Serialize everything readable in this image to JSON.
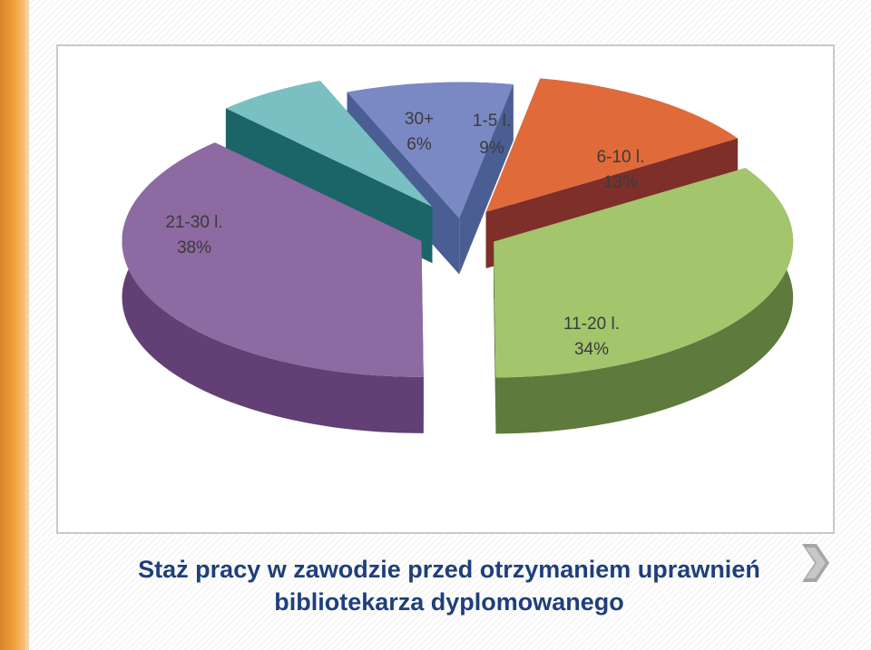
{
  "chart_data": {
    "type": "pie",
    "slices": [
      {
        "name": "1-5 l.",
        "percent_label": "9%",
        "value": 9,
        "color": "#7a89c3",
        "color_dark": "#4b5e93"
      },
      {
        "name": "6-10 l.",
        "percent_label": "13%",
        "value": 13,
        "color": "#e06a3a",
        "color_dark": "#7e2f2a"
      },
      {
        "name": "11-20 l.",
        "percent_label": "34%",
        "value": 34,
        "color": "#a3c56c",
        "color_dark": "#5f7a3d"
      },
      {
        "name": "21-30 l.",
        "percent_label": "38%",
        "value": 38,
        "color": "#8d6aa1",
        "color_dark": "#623f74"
      },
      {
        "name": "30+",
        "percent_label": "6%",
        "value": 6,
        "color": "#7ac0c3",
        "color_dark": "#1b6468"
      }
    ]
  },
  "title": {
    "line1": "Staż pracy w zawodzie przed otrzymaniem uprawnień",
    "line2": "bibliotekarza dyplomowanego"
  }
}
